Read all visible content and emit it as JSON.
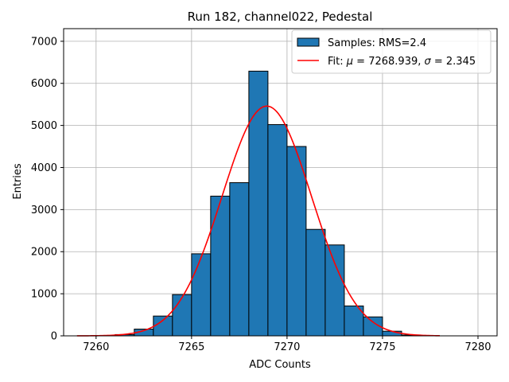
{
  "chart_data": {
    "type": "bar",
    "title": "Run 182, channel022, Pedestal",
    "xlabel": "ADC Counts",
    "ylabel": "Entries",
    "xlim": [
      7258.3,
      7281
    ],
    "ylim": [
      0,
      7300
    ],
    "xticks": [
      7260,
      7265,
      7270,
      7275,
      7280
    ],
    "yticks": [
      0,
      1000,
      2000,
      3000,
      4000,
      5000,
      6000,
      7000
    ],
    "grid": true,
    "legend_position": "top-right",
    "histogram": {
      "name": "Samples: RMS=2.4",
      "color": "#1f77b4",
      "edge_color": "#000000",
      "bins": [
        {
          "x0": 7261,
          "x1": 7262,
          "value": 30
        },
        {
          "x0": 7262,
          "x1": 7263,
          "value": 160
        },
        {
          "x0": 7263,
          "x1": 7264,
          "value": 470
        },
        {
          "x0": 7264,
          "x1": 7265,
          "value": 980
        },
        {
          "x0": 7265,
          "x1": 7266,
          "value": 1950
        },
        {
          "x0": 7266,
          "x1": 7267,
          "value": 3320
        },
        {
          "x0": 7267,
          "x1": 7268,
          "value": 3640
        },
        {
          "x0": 7268,
          "x1": 7269,
          "value": 6290
        },
        {
          "x0": 7269,
          "x1": 7270,
          "value": 5020
        },
        {
          "x0": 7270,
          "x1": 7271,
          "value": 4500
        },
        {
          "x0": 7271,
          "x1": 7272,
          "value": 2530
        },
        {
          "x0": 7272,
          "x1": 7273,
          "value": 2160
        },
        {
          "x0": 7273,
          "x1": 7274,
          "value": 710
        },
        {
          "x0": 7274,
          "x1": 7275,
          "value": 450
        },
        {
          "x0": 7275,
          "x1": 7276,
          "value": 110
        },
        {
          "x0": 7276,
          "x1": 7277,
          "value": 20
        }
      ]
    },
    "fit": {
      "name_prefix": "Fit: ",
      "mu_symbol": "μ",
      "mu_text": " = 7268.939, ",
      "sigma_symbol": "σ",
      "sigma_text": " = 2.345",
      "color": "#ff0000",
      "mu": 7268.939,
      "sigma": 2.345,
      "amplitude": 5460,
      "x_range": [
        7259,
        7278
      ]
    }
  }
}
